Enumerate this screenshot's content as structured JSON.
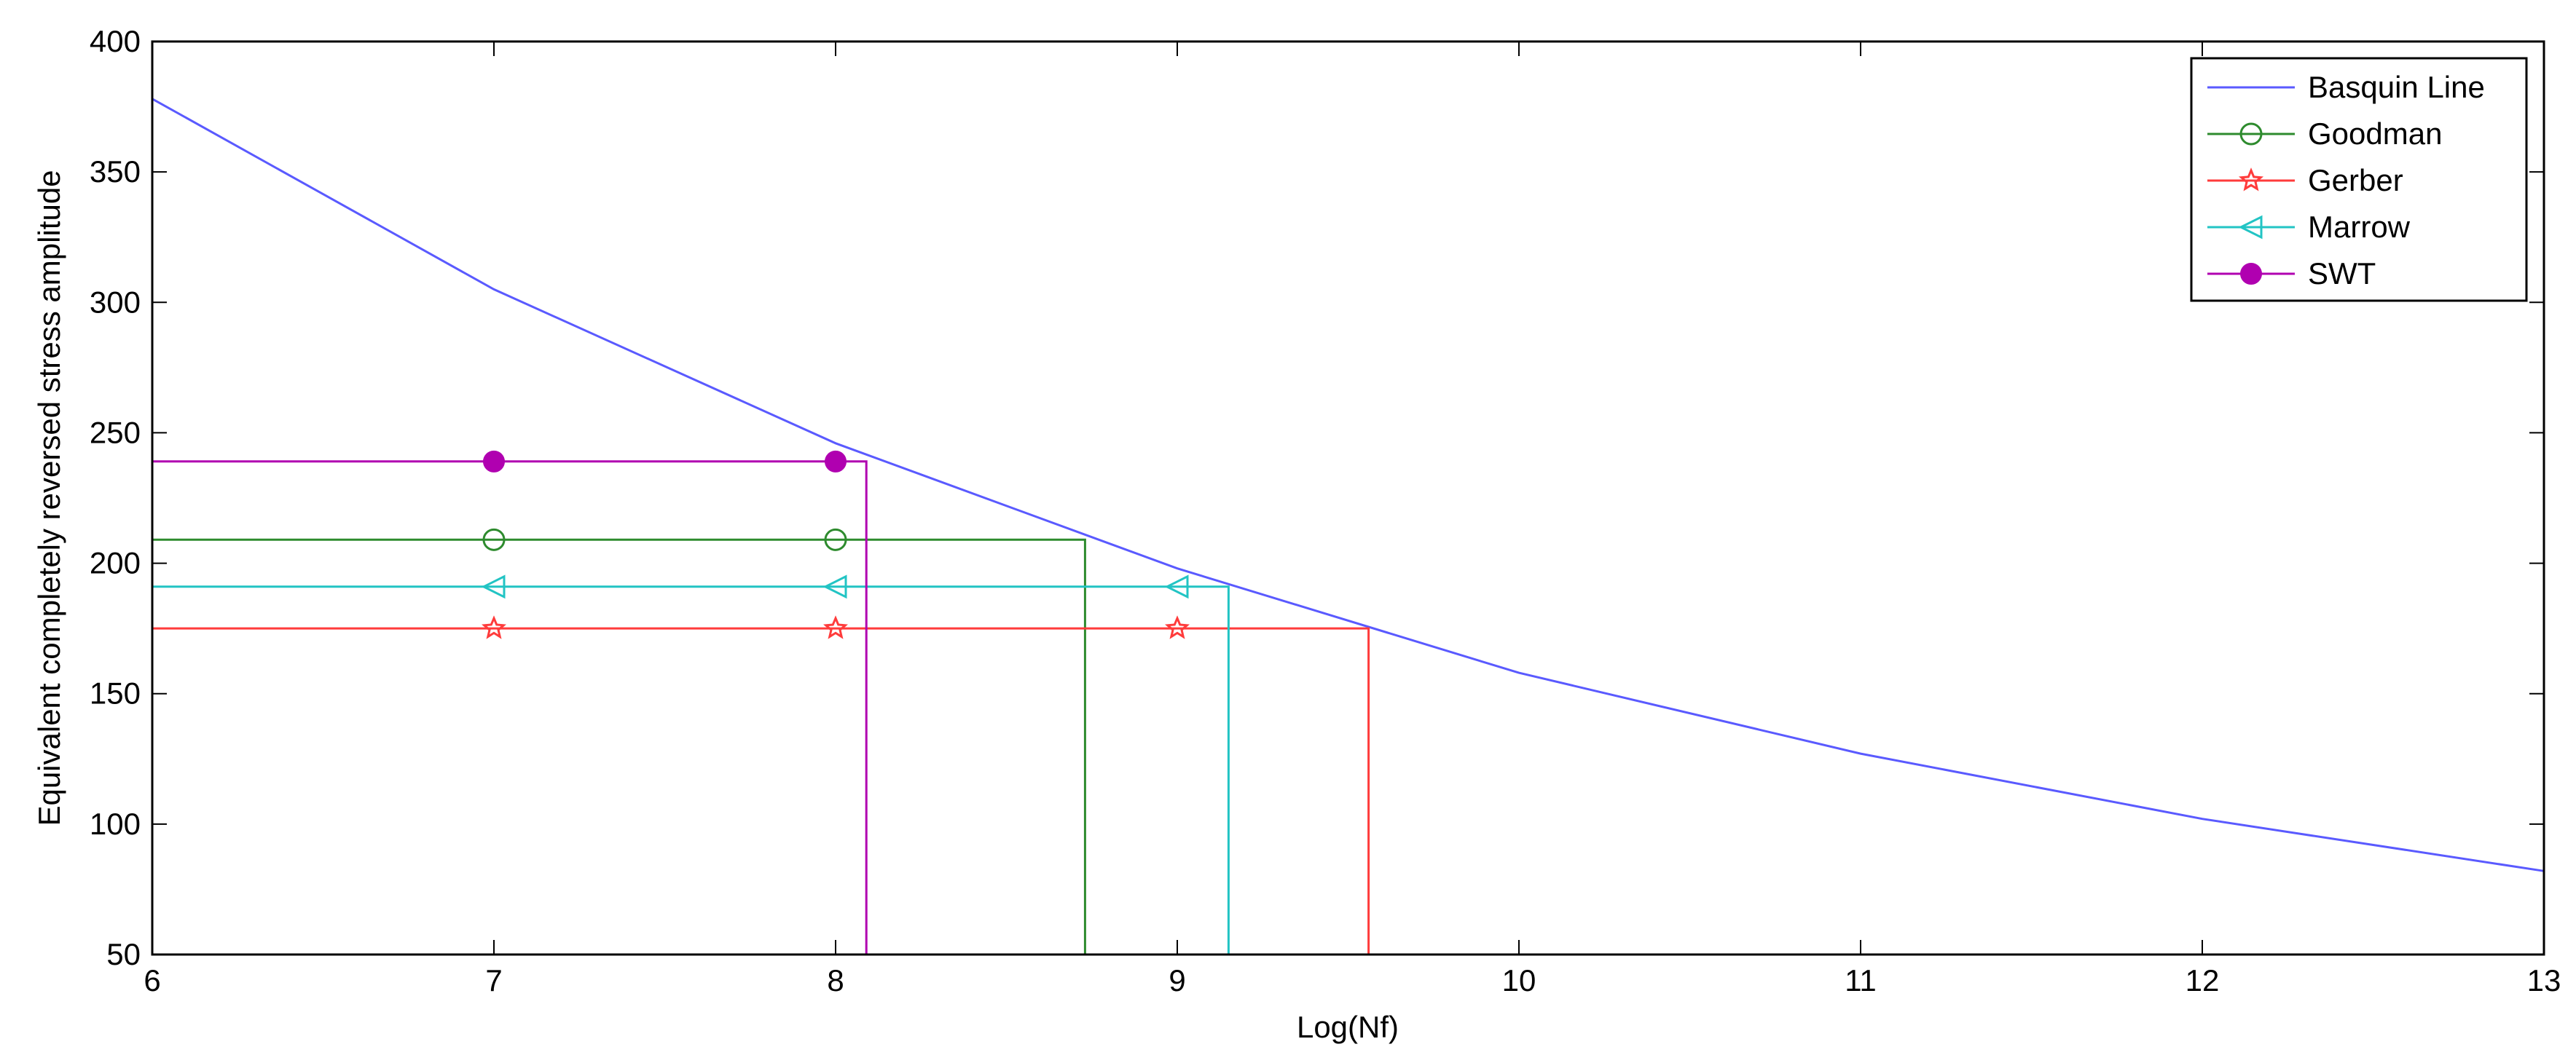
{
  "chart_data": {
    "type": "line",
    "title": "",
    "xlabel": "Log(Nf)",
    "ylabel": "Equivalent completely reversed stress amplitude",
    "xlim": [
      6,
      13
    ],
    "ylim": [
      50,
      400
    ],
    "xticks": [
      "6",
      "7",
      "8",
      "9",
      "10",
      "11",
      "12",
      "13"
    ],
    "yticks": [
      "50",
      "100",
      "150",
      "200",
      "250",
      "300",
      "350",
      "400"
    ],
    "grid": false,
    "legend_position": "top-right",
    "series": [
      {
        "name": "Basquin Line",
        "color": "#5a5aff",
        "marker": "none",
        "x": [
          6,
          7,
          8,
          9,
          10,
          11,
          12,
          13
        ],
        "y": [
          378,
          305,
          246,
          198,
          158,
          127,
          102,
          82
        ]
      },
      {
        "name": "Goodman",
        "color": "#2e8b2e",
        "marker": "circle-open",
        "value": 209,
        "intersect_x": 8.73,
        "marker_x": [
          7,
          8
        ]
      },
      {
        "name": "Gerber",
        "color": "#ff3b3b",
        "marker": "star",
        "value": 175,
        "intersect_x": 9.56,
        "marker_x": [
          7,
          8,
          9
        ]
      },
      {
        "name": "Marrow",
        "color": "#22c4c4",
        "marker": "triangle-left",
        "value": 191,
        "intersect_x": 9.15,
        "marker_x": [
          7,
          8,
          9
        ]
      },
      {
        "name": "SWT",
        "color": "#b000b0",
        "marker": "circle-filled",
        "value": 239,
        "intersect_x": 8.09,
        "marker_x": [
          7,
          8
        ]
      }
    ]
  }
}
